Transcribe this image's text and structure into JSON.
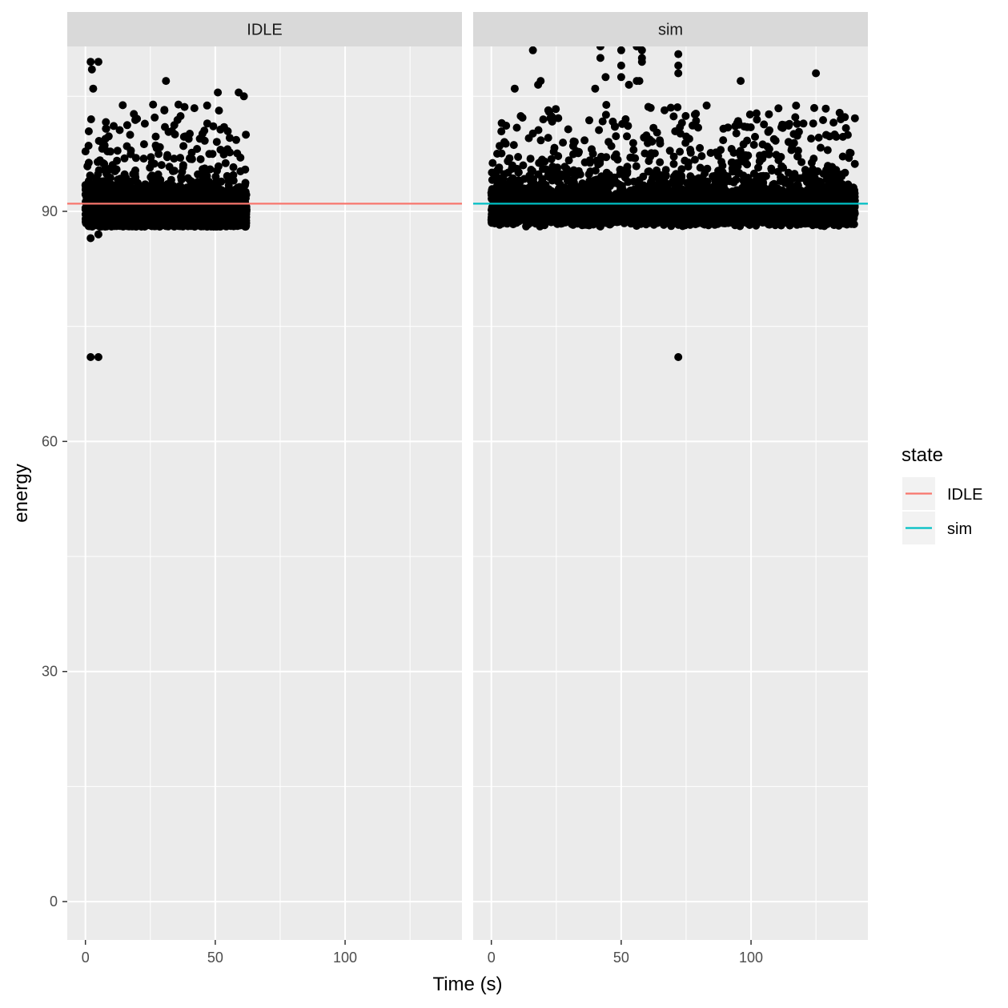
{
  "chart_data": {
    "type": "scatter",
    "facet_by": "state",
    "xlabel": "Time (s)",
    "ylabel": "energy",
    "xlim": [
      -7,
      145
    ],
    "ylim": [
      -5,
      111.5
    ],
    "x_ticks": [
      0,
      50,
      100
    ],
    "y_ticks": [
      0,
      30,
      60,
      90
    ],
    "grid": true,
    "legend": {
      "title": "state",
      "position": "right",
      "entries": [
        {
          "label": "IDLE",
          "color": "#F8766D"
        },
        {
          "label": "sim",
          "color": "#00BFC4"
        }
      ]
    },
    "panels": [
      {
        "strip": "IDLE",
        "hline": {
          "y": 91,
          "color": "#F8766D"
        },
        "points_summary": {
          "x_range": [
            0,
            62
          ],
          "dense_band_y": [
            88,
            95
          ],
          "sparse_band_y": [
            86.5,
            104
          ]
        },
        "notable_points": [
          {
            "x": 2,
            "y": 109.5
          },
          {
            "x": 2.5,
            "y": 108.5
          },
          {
            "x": 5,
            "y": 109.5
          },
          {
            "x": 3,
            "y": 106
          },
          {
            "x": 31,
            "y": 107
          },
          {
            "x": 59,
            "y": 105.5
          },
          {
            "x": 51,
            "y": 105.5
          },
          {
            "x": 61,
            "y": 105
          },
          {
            "x": 2,
            "y": 71
          },
          {
            "x": 5,
            "y": 71
          },
          {
            "x": 2,
            "y": 86.5
          },
          {
            "x": 5,
            "y": 87
          }
        ]
      },
      {
        "strip": "sim",
        "hline": {
          "y": 91,
          "color": "#00BFC4"
        },
        "points_summary": {
          "x_range": [
            0,
            140
          ],
          "dense_band_y": [
            88,
            95
          ],
          "sparse_band_y": [
            87.5,
            104
          ]
        },
        "notable_points": [
          {
            "x": 16,
            "y": 111
          },
          {
            "x": 42,
            "y": 111.5
          },
          {
            "x": 50,
            "y": 111
          },
          {
            "x": 56,
            "y": 111.5
          },
          {
            "x": 58,
            "y": 111
          },
          {
            "x": 42,
            "y": 110
          },
          {
            "x": 58,
            "y": 110
          },
          {
            "x": 50,
            "y": 109
          },
          {
            "x": 58,
            "y": 109.5
          },
          {
            "x": 72,
            "y": 110.5
          },
          {
            "x": 72,
            "y": 109
          },
          {
            "x": 72,
            "y": 108
          },
          {
            "x": 50,
            "y": 107.5
          },
          {
            "x": 56,
            "y": 107
          },
          {
            "x": 57,
            "y": 107
          },
          {
            "x": 19,
            "y": 107
          },
          {
            "x": 18,
            "y": 106.5
          },
          {
            "x": 44,
            "y": 107.5
          },
          {
            "x": 96,
            "y": 107
          },
          {
            "x": 125,
            "y": 108
          },
          {
            "x": 9,
            "y": 106
          },
          {
            "x": 40,
            "y": 106
          },
          {
            "x": 53,
            "y": 106.5
          },
          {
            "x": 72,
            "y": 71
          }
        ]
      }
    ]
  }
}
